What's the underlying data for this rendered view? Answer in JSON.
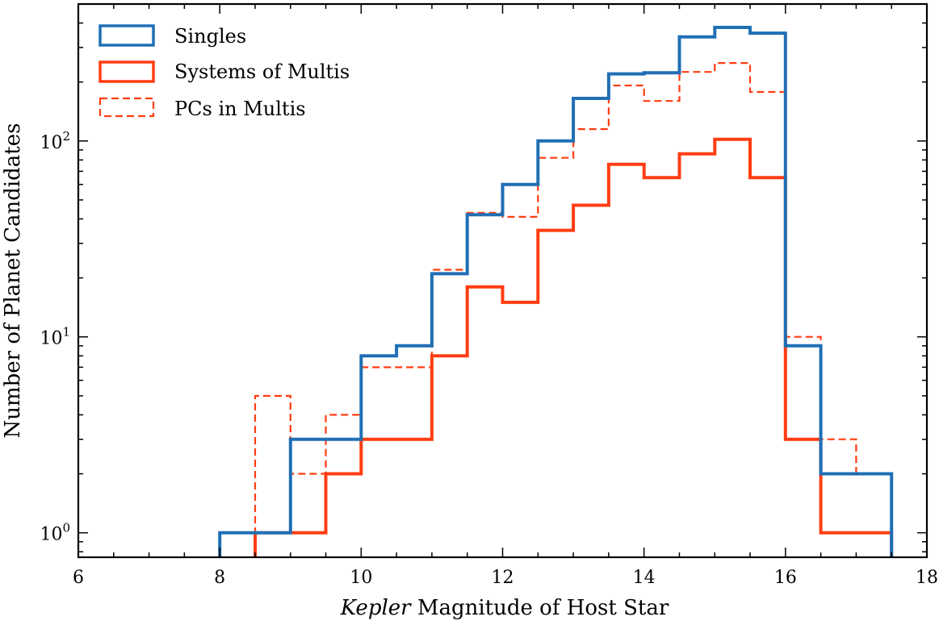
{
  "chart_data": {
    "type": "histogram",
    "xlabel_italic": "Kepler",
    "xlabel_rest": " Magnitude of Host Star",
    "ylabel": "Number of Planet Candidates",
    "yscale": "log",
    "xlim": [
      6,
      18
    ],
    "ylim": [
      0.75,
      500
    ],
    "x_ticks": [
      6,
      8,
      10,
      12,
      14,
      16,
      18
    ],
    "x_tick_labels": [
      "6",
      "8",
      "10",
      "12",
      "14",
      "16",
      "18"
    ],
    "y_ticks": [
      1,
      10,
      100
    ],
    "y_tick_labels": [
      {
        "base": "10",
        "exp": "0"
      },
      {
        "base": "10",
        "exp": "1"
      },
      {
        "base": "10",
        "exp": "2"
      }
    ],
    "bin_width": 0.5,
    "series": [
      {
        "name": "Singles",
        "color": "#1f6fb5",
        "style": "solid",
        "bins": [
          {
            "x0": 8.0,
            "value": 1
          },
          {
            "x0": 8.5,
            "value": 1
          },
          {
            "x0": 9.0,
            "value": 3
          },
          {
            "x0": 9.5,
            "value": 3
          },
          {
            "x0": 10.0,
            "value": 8
          },
          {
            "x0": 10.5,
            "value": 9
          },
          {
            "x0": 11.0,
            "value": 21
          },
          {
            "x0": 11.5,
            "value": 42
          },
          {
            "x0": 12.0,
            "value": 60
          },
          {
            "x0": 12.5,
            "value": 100
          },
          {
            "x0": 13.0,
            "value": 165
          },
          {
            "x0": 13.5,
            "value": 220
          },
          {
            "x0": 14.0,
            "value": 223
          },
          {
            "x0": 14.5,
            "value": 340
          },
          {
            "x0": 15.0,
            "value": 380
          },
          {
            "x0": 15.5,
            "value": 355
          },
          {
            "x0": 16.0,
            "value": 9
          },
          {
            "x0": 16.5,
            "value": 2
          },
          {
            "x0": 17.0,
            "value": 2
          }
        ]
      },
      {
        "name": "Systems of Multis",
        "color": "#ff3d12",
        "style": "solid",
        "bins": [
          {
            "x0": 8.5,
            "value": 1
          },
          {
            "x0": 9.0,
            "value": 1
          },
          {
            "x0": 9.5,
            "value": 2
          },
          {
            "x0": 10.0,
            "value": 3
          },
          {
            "x0": 10.5,
            "value": 3
          },
          {
            "x0": 11.0,
            "value": 8
          },
          {
            "x0": 11.5,
            "value": 18
          },
          {
            "x0": 12.0,
            "value": 15
          },
          {
            "x0": 12.5,
            "value": 35
          },
          {
            "x0": 13.0,
            "value": 47
          },
          {
            "x0": 13.5,
            "value": 76
          },
          {
            "x0": 14.0,
            "value": 65
          },
          {
            "x0": 14.5,
            "value": 86
          },
          {
            "x0": 15.0,
            "value": 102
          },
          {
            "x0": 15.5,
            "value": 65
          },
          {
            "x0": 16.0,
            "value": 3
          },
          {
            "x0": 16.5,
            "value": 1
          },
          {
            "x0": 17.0,
            "value": 1
          }
        ]
      },
      {
        "name": "PCs in Multis",
        "color": "#ff3d12",
        "style": "dashed",
        "bins": [
          {
            "x0": 8.5,
            "value": 5
          },
          {
            "x0": 9.0,
            "value": 2
          },
          {
            "x0": 9.5,
            "value": 4
          },
          {
            "x0": 10.0,
            "value": 7
          },
          {
            "x0": 10.5,
            "value": 7
          },
          {
            "x0": 11.0,
            "value": 22
          },
          {
            "x0": 11.5,
            "value": 43
          },
          {
            "x0": 12.0,
            "value": 41
          },
          {
            "x0": 12.5,
            "value": 82
          },
          {
            "x0": 13.0,
            "value": 115
          },
          {
            "x0": 13.5,
            "value": 192
          },
          {
            "x0": 14.0,
            "value": 160
          },
          {
            "x0": 14.5,
            "value": 225
          },
          {
            "x0": 15.0,
            "value": 250
          },
          {
            "x0": 15.5,
            "value": 178
          },
          {
            "x0": 16.0,
            "value": 10
          },
          {
            "x0": 16.5,
            "value": 3
          },
          {
            "x0": 17.0,
            "value": 2
          }
        ]
      }
    ],
    "legend": {
      "placement": "top-left"
    }
  }
}
